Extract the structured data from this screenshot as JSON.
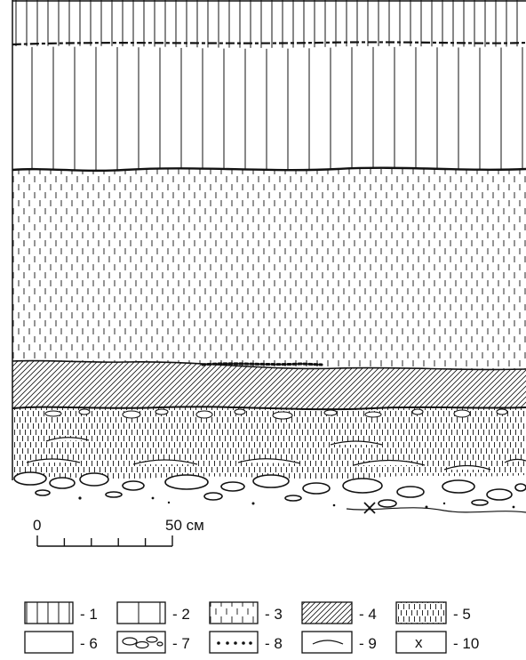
{
  "scale_bar": {
    "start_label": "0",
    "end_label": "50 см",
    "divisions": 5
  },
  "legend": {
    "items": [
      {
        "pattern": "dense-vertical-lines",
        "label": "- 1"
      },
      {
        "pattern": "sparse-vertical-lines",
        "label": "- 2"
      },
      {
        "pattern": "sparse-vertical-dashes",
        "label": "- 3"
      },
      {
        "pattern": "diagonal-hatching",
        "label": "- 4"
      },
      {
        "pattern": "dense-vertical-dashes",
        "label": "- 5"
      },
      {
        "pattern": "blank",
        "label": "- 6"
      },
      {
        "pattern": "pebbles",
        "label": "- 7"
      },
      {
        "pattern": "dot-lens",
        "label": "- 8"
      },
      {
        "pattern": "sand-lens",
        "label": "- 9"
      },
      {
        "pattern": "cross-mark",
        "label": "- 10",
        "symbol": "x"
      }
    ]
  },
  "colors": {
    "ink": "#111111",
    "paper": "#ffffff"
  }
}
